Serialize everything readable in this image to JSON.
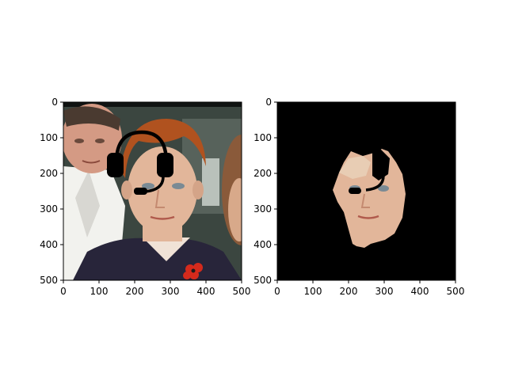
{
  "chart_data": [
    {
      "type": "image",
      "title": "",
      "xlabel": "",
      "ylabel": "",
      "xlim": [
        0,
        500
      ],
      "ylim": [
        500,
        0
      ],
      "xticks": [
        0,
        100,
        200,
        300,
        400,
        500
      ],
      "yticks": [
        0,
        100,
        200,
        300,
        400,
        500
      ],
      "content": "photo of a red-haired boy with a drawn black headset overlay, an older man in background, red poppy on jacket"
    },
    {
      "type": "image",
      "title": "",
      "xlabel": "",
      "ylabel": "",
      "xlim": [
        0,
        500
      ],
      "ylim": [
        500,
        0
      ],
      "xticks": [
        0,
        100,
        200,
        300,
        400,
        500
      ],
      "yticks": [
        0,
        100,
        200,
        300,
        400,
        500
      ],
      "content": "segmented face region with headset on black background"
    }
  ],
  "colors": {
    "background": "#ffffff",
    "mask": "#000000",
    "hair": "#b0521f",
    "skin": "#e2b69a",
    "jacket": "#28253a",
    "shirt": "#f2f2ee",
    "poppy": "#d42a1c"
  },
  "icons": [
    "headset-icon",
    "poppy-icon"
  ]
}
